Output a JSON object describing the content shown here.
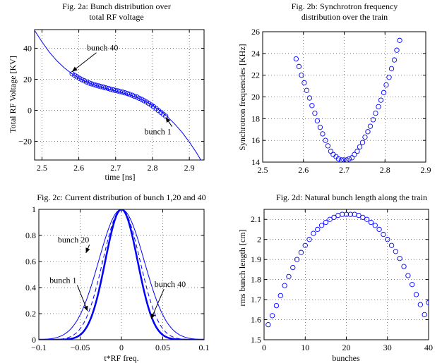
{
  "chart_data": [
    {
      "id": "a",
      "type": "scatter",
      "title": [
        "Fig. 2a: Bunch distribution over",
        "total RF voltage"
      ],
      "xlabel": "time [ns]",
      "ylabel": "Total RF Voltage [KV]",
      "xlim": [
        2.48,
        2.94
      ],
      "ylim": [
        -32,
        52
      ],
      "xticks": [
        2.5,
        2.6,
        2.7,
        2.8,
        2.9
      ],
      "xtick_labels": [
        "2.5",
        "2.6",
        "2.7",
        "2.8",
        "2.9"
      ],
      "yticks": [
        -20,
        0,
        20,
        40
      ],
      "ytick_labels": [
        "−20",
        "0",
        "20",
        "40"
      ],
      "grid": true,
      "series": [
        {
          "kind": "line",
          "x": [
            2.48,
            2.5,
            2.52,
            2.54,
            2.56,
            2.58,
            2.6,
            2.62,
            2.64,
            2.66,
            2.68,
            2.7,
            2.72,
            2.74,
            2.76,
            2.78,
            2.8,
            2.82,
            2.84,
            2.86,
            2.88,
            2.9,
            2.92,
            2.94
          ],
          "y": [
            51.5,
            44.1,
            37.5,
            32.0,
            27.5,
            23.8,
            20.8,
            18.4,
            16.5,
            15.0,
            13.7,
            12.5,
            11.2,
            9.8,
            8.1,
            5.9,
            3.2,
            -0.1,
            -4.0,
            -8.7,
            -14.1,
            -20.4,
            -27.5,
            -35.5
          ]
        },
        {
          "kind": "markers",
          "x": [
            2.582,
            2.589,
            2.595,
            2.602,
            2.608,
            2.615,
            2.621,
            2.628,
            2.634,
            2.641,
            2.647,
            2.654,
            2.66,
            2.667,
            2.673,
            2.68,
            2.686,
            2.693,
            2.699,
            2.706,
            2.712,
            2.719,
            2.725,
            2.732,
            2.738,
            2.745,
            2.751,
            2.758,
            2.764,
            2.771,
            2.777,
            2.784,
            2.79,
            2.797,
            2.803,
            2.81,
            2.816,
            2.823,
            2.829,
            2.836
          ],
          "y": [
            23.5,
            22.5,
            21.6,
            20.6,
            19.8,
            19.0,
            18.3,
            17.6,
            17.1,
            16.6,
            16.1,
            15.7,
            15.3,
            14.9,
            14.5,
            14.1,
            13.6,
            13.2,
            12.8,
            12.5,
            12.1,
            11.7,
            11.3,
            10.8,
            10.3,
            9.7,
            9.1,
            8.5,
            7.8,
            7.0,
            6.2,
            5.3,
            4.4,
            3.4,
            2.3,
            1.1,
            -0.1,
            -1.3,
            -2.5,
            -3.8
          ]
        }
      ],
      "annotations": [
        {
          "text": "bunch 40",
          "x": 2.622,
          "y": 38.5,
          "target_x": 2.582,
          "target_y": 25.0
        },
        {
          "text": "bunch 1",
          "x": 2.778,
          "y": -15.5,
          "target_x": 2.836,
          "target_y": -4.5
        }
      ]
    },
    {
      "id": "b",
      "type": "scatter",
      "title": [
        "Fig. 2b: Synchrotron frequency",
        "distribution over the train"
      ],
      "xlabel": "",
      "ylabel": "Synchrotron frequencies [KHz]",
      "xlim": [
        2.5,
        2.9
      ],
      "ylim": [
        14,
        26
      ],
      "xticks": [
        2.5,
        2.6,
        2.7,
        2.8,
        2.9
      ],
      "xtick_labels": [
        "2.5",
        "2.6",
        "2.7",
        "2.8",
        "2.9"
      ],
      "yticks": [
        14,
        16,
        18,
        20,
        22,
        24,
        26
      ],
      "ytick_labels": [
        "14",
        "16",
        "18",
        "20",
        "22",
        "24",
        "26"
      ],
      "grid": true,
      "series": [
        {
          "kind": "markers",
          "x": [
            2.582,
            2.589,
            2.595,
            2.602,
            2.608,
            2.615,
            2.621,
            2.628,
            2.634,
            2.641,
            2.647,
            2.654,
            2.66,
            2.667,
            2.673,
            2.68,
            2.686,
            2.693,
            2.699,
            2.706,
            2.712,
            2.719,
            2.725,
            2.732,
            2.738,
            2.745,
            2.751,
            2.758,
            2.764,
            2.771,
            2.777,
            2.784,
            2.79,
            2.797,
            2.803,
            2.81,
            2.816,
            2.823,
            2.829,
            2.836
          ],
          "y": [
            23.5,
            22.8,
            22.0,
            21.3,
            20.6,
            19.9,
            19.2,
            18.5,
            17.8,
            17.2,
            16.6,
            16.0,
            15.5,
            15.0,
            14.7,
            14.5,
            14.3,
            14.2,
            14.2,
            14.2,
            14.3,
            14.4,
            14.7,
            15.0,
            15.4,
            15.8,
            16.3,
            16.8,
            17.3,
            17.9,
            18.5,
            19.1,
            19.7,
            20.4,
            21.1,
            21.8,
            22.6,
            23.4,
            24.3,
            25.2
          ]
        }
      ]
    },
    {
      "id": "c",
      "type": "line",
      "title": [
        "Fig. 2c: Current distribution of bunch 1,20 and 40"
      ],
      "xlabel": "t*RF freq.",
      "ylabel": "",
      "xlim": [
        -0.1,
        0.1
      ],
      "ylim": [
        0,
        1
      ],
      "xticks": [
        -0.1,
        -0.05,
        0,
        0.05,
        0.1
      ],
      "xtick_labels": [
        "−0.1",
        "−0.05",
        "0",
        "0.05",
        "0.1"
      ],
      "yticks": [
        0,
        0.2,
        0.4,
        0.6,
        0.8,
        1
      ],
      "ytick_labels": [
        "0",
        "0.2",
        "0.4",
        "0.6",
        "0.8",
        "1"
      ],
      "grid": true,
      "series": [
        {
          "kind": "gauss",
          "sigma": 0.0195,
          "style": "solid",
          "width": 2.5
        },
        {
          "kind": "gauss",
          "sigma": 0.0275,
          "style": "solid",
          "width": 1.0
        },
        {
          "kind": "gauss",
          "sigma": 0.0225,
          "style": "dashed",
          "width": 1.0
        }
      ],
      "annotations": [
        {
          "text": "bunch 20",
          "x": -0.077,
          "y": 0.745,
          "target_x": -0.043,
          "target_y": 0.665
        },
        {
          "text": "bunch 1",
          "x": -0.087,
          "y": 0.435,
          "target_x": -0.041,
          "target_y": 0.22
        },
        {
          "text": "bunch 40",
          "x": 0.04,
          "y": 0.405,
          "target_x": 0.036,
          "target_y": 0.16
        }
      ]
    },
    {
      "id": "d",
      "type": "scatter",
      "title": [
        "Fig. 2d: Natural bunch length along the train"
      ],
      "xlabel": "bunches",
      "ylabel": "rms bunch length [cm]",
      "xlim": [
        0,
        40
      ],
      "ylim": [
        1.5,
        2.15
      ],
      "xticks": [
        0,
        10,
        20,
        30,
        40
      ],
      "xtick_labels": [
        "0",
        "10",
        "20",
        "30",
        "40"
      ],
      "yticks": [
        1.5,
        1.6,
        1.7,
        1.8,
        1.9,
        2.0,
        2.1
      ],
      "ytick_labels": [
        "1.5",
        "1.6",
        "1.7",
        "1.8",
        "1.9",
        "2",
        "2.1"
      ],
      "grid": true,
      "series": [
        {
          "kind": "markers",
          "x": [
            1,
            2,
            3,
            4,
            5,
            6,
            7,
            8,
            9,
            10,
            11,
            12,
            13,
            14,
            15,
            16,
            17,
            18,
            19,
            20,
            21,
            22,
            23,
            24,
            25,
            26,
            27,
            28,
            29,
            30,
            31,
            32,
            33,
            34,
            35,
            36,
            37,
            38,
            39,
            40
          ],
          "y": [
            1.575,
            1.62,
            1.67,
            1.72,
            1.77,
            1.815,
            1.86,
            1.9,
            1.935,
            1.97,
            2.0,
            2.03,
            2.05,
            2.07,
            2.085,
            2.1,
            2.11,
            2.12,
            2.125,
            2.125,
            2.125,
            2.125,
            2.12,
            2.11,
            2.1,
            2.085,
            2.07,
            2.05,
            2.025,
            2.0,
            1.97,
            1.94,
            1.905,
            1.865,
            1.82,
            1.775,
            1.725,
            1.675,
            1.625,
            1.685
          ]
        }
      ]
    }
  ]
}
